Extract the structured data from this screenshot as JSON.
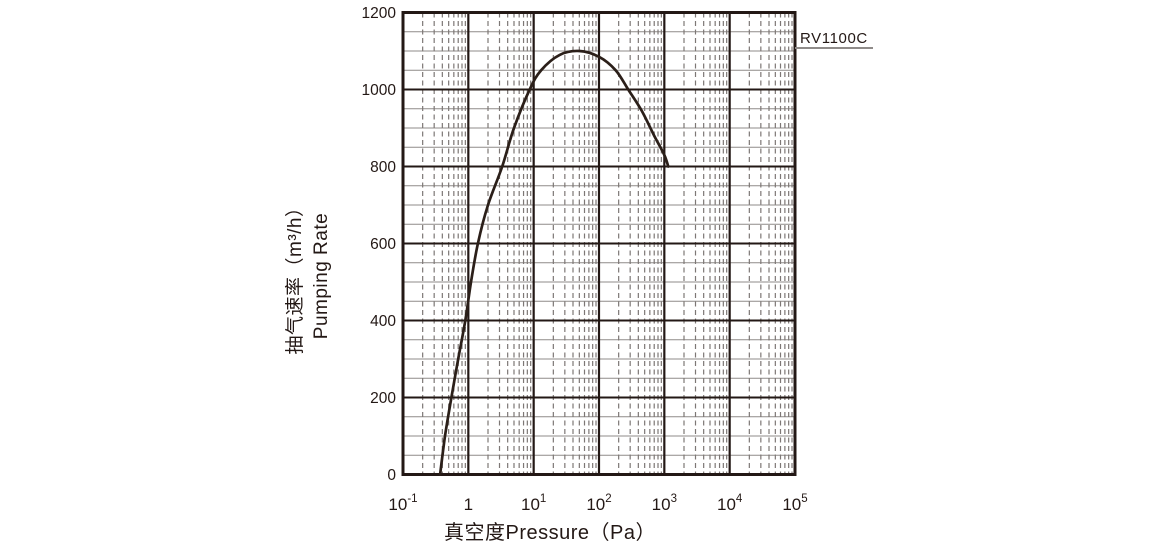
{
  "colors": {
    "background": "#ffffff",
    "text": "#231815",
    "curve": "#2b1f19",
    "grid_major": "#231815",
    "grid_minor_h": "#8f8b89",
    "grid_minor_v": "#7d7775",
    "border": "#231815",
    "label_underline": "#8f8b89"
  },
  "chart_data": {
    "type": "line",
    "title": "",
    "legend": {
      "position": "outside-top-right",
      "entries": [
        "RV1100C"
      ]
    },
    "series": [
      {
        "name": "RV1100C",
        "label": "RV1100C",
        "points": [
          [
            0.37,
            0
          ],
          [
            0.44,
            100
          ],
          [
            0.55,
            200
          ],
          [
            0.7,
            300
          ],
          [
            0.9,
            400
          ],
          [
            1.1,
            500
          ],
          [
            1.4,
            600
          ],
          [
            2.0,
            700
          ],
          [
            3.3,
            800
          ],
          [
            5.0,
            900
          ],
          [
            8.7,
            1000
          ],
          [
            13,
            1050
          ],
          [
            25,
            1090
          ],
          [
            50,
            1100
          ],
          [
            100,
            1085
          ],
          [
            180,
            1050
          ],
          [
            280,
            1000
          ],
          [
            450,
            945
          ],
          [
            700,
            880
          ],
          [
            1000,
            830
          ],
          [
            1150,
            800
          ]
        ]
      }
    ],
    "x_axis": {
      "label": "真空度Pressure（Pa）",
      "scale": "log",
      "min": 0.1,
      "max": 100000,
      "ticks": [
        {
          "base": "10",
          "exp": "-1"
        },
        {
          "base": "1",
          "exp": ""
        },
        {
          "base": "10",
          "exp": "1"
        },
        {
          "base": "10",
          "exp": "2"
        },
        {
          "base": "10",
          "exp": "3"
        },
        {
          "base": "10",
          "exp": "4"
        },
        {
          "base": "10",
          "exp": "5"
        }
      ],
      "minor_per_decade": [
        2,
        3,
        4,
        5,
        6,
        7,
        8,
        9
      ],
      "grid_minor_style": "dashed"
    },
    "y_axis": {
      "label_line1": "抽气速率（m³/h）",
      "label_line2": "Pumping Rate",
      "min": 0,
      "max": 1200,
      "major_step": 200,
      "minor_step": 50,
      "ticks": [
        "0",
        "200",
        "400",
        "600",
        "800",
        "1000",
        "1200"
      ],
      "grid_minor_style": "solid"
    }
  }
}
